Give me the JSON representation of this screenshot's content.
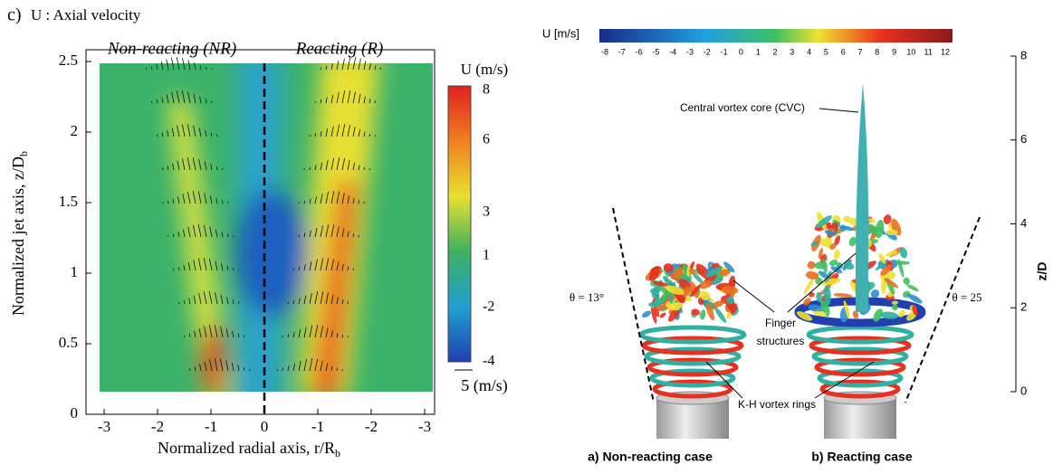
{
  "panel_c": {
    "label": "c)",
    "title": "U : Axial velocity",
    "left_label": "Non-reacting (NR)",
    "right_label": "Reacting (R)",
    "x_axis_label": "Normalized radial axis, r/R",
    "x_axis_sub": "b",
    "y_axis_label": "Normalized jet axis, z/D",
    "y_axis_sub": "b",
    "xticks": [
      "-3",
      "-2",
      "-1",
      "0",
      "-1",
      "-2",
      "-3"
    ],
    "yticks": [
      "0",
      "0.5",
      "1",
      "1.5",
      "2",
      "2.5"
    ],
    "colorbar_title": "U (m/s)",
    "colorbar_ticks": [
      "8",
      "6",
      "3",
      "1",
      "-2",
      "-4"
    ],
    "vector_scale": "5 (m/s)"
  },
  "panel_ab": {
    "colorbar_title": "U [m/s]",
    "colorbar_ticks": [
      "-8",
      "-7",
      "-6",
      "-5",
      "-4",
      "-3",
      "-2",
      "-1",
      "0",
      "1",
      "2",
      "3",
      "4",
      "5",
      "6",
      "7",
      "8",
      "9",
      "10",
      "11",
      "12"
    ],
    "z_ticks": [
      "0",
      "2",
      "4",
      "6",
      "8"
    ],
    "z_label": "z/D",
    "annotations": {
      "cvc": "Central vortex core (CVC)",
      "finger_1": "Finger",
      "finger_2": "structures",
      "kh": "K-H vortex rings",
      "theta_nr": "θ = 13°",
      "theta_r": "θ = 25"
    },
    "captions": [
      "a) Non-reacting case",
      "b) Reacting case"
    ]
  }
}
